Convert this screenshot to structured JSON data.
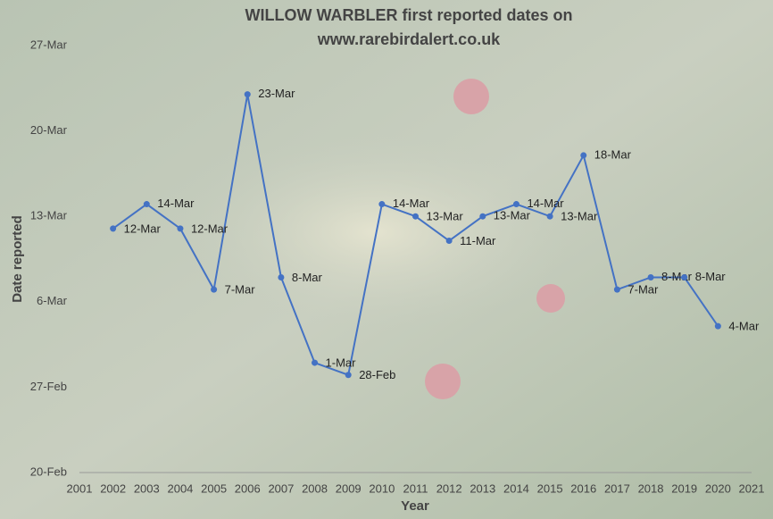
{
  "chart_data": {
    "type": "line",
    "title": "WILLOW WARBLER first reported dates on",
    "subtitle": "www.rarebirdalert.co.uk",
    "x_label": "Year",
    "y_label": "Date reported",
    "x": [
      2002,
      2003,
      2004,
      2005,
      2006,
      2007,
      2008,
      2009,
      2010,
      2011,
      2012,
      2013,
      2014,
      2015,
      2016,
      2017,
      2018,
      2019,
      2020
    ],
    "series": [
      {
        "color": "#4472c4",
        "values": [
          71,
          73,
          71,
          66,
          82,
          67,
          60,
          59,
          73,
          72,
          70,
          72,
          73,
          72,
          77,
          66,
          67,
          67,
          63
        ],
        "value_labels": [
          "12-Mar",
          "14-Mar",
          "12-Mar",
          "7-Mar",
          "23-Mar",
          "8-Mar",
          "1-Mar",
          "28-Feb",
          "14-Mar",
          "13-Mar",
          "11-Mar",
          "13-Mar",
          "14-Mar",
          "13-Mar",
          "18-Mar",
          "7-Mar",
          "8-Mar",
          "8-Mar",
          "4-Mar"
        ]
      }
    ],
    "xlim": [
      2001,
      2021
    ],
    "xticks": [
      2001,
      2002,
      2003,
      2004,
      2005,
      2006,
      2007,
      2008,
      2009,
      2010,
      2011,
      2012,
      2013,
      2014,
      2015,
      2016,
      2017,
      2018,
      2019,
      2020,
      2021
    ],
    "ylim": [
      51,
      86
    ],
    "yticks": [
      {
        "value": 51,
        "label": "20-Feb"
      },
      {
        "value": 58,
        "label": "27-Feb"
      },
      {
        "value": 65,
        "label": "6-Mar"
      },
      {
        "value": 72,
        "label": "13-Mar"
      },
      {
        "value": 79,
        "label": "20-Mar"
      },
      {
        "value": 86,
        "label": "27-Mar"
      }
    ],
    "grid": false
  }
}
